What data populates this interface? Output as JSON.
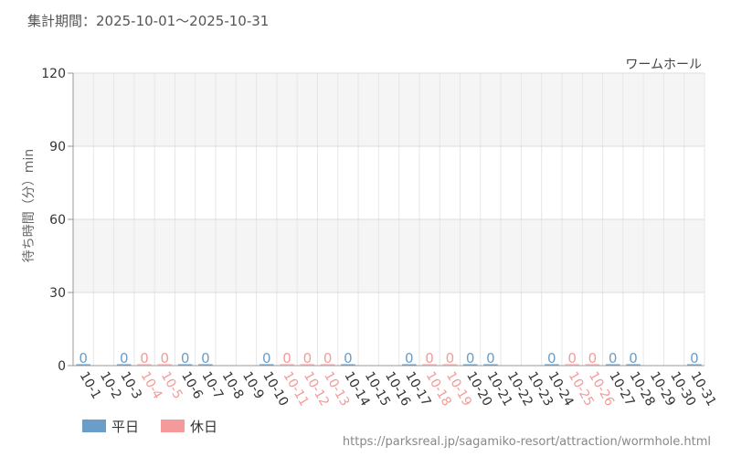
{
  "header": {
    "period": "集計期間：2025-10-01〜2025-10-31"
  },
  "footer": {
    "url": "https://parksreal.jp/sagamiko-resort/attraction/wormhole.html"
  },
  "chart_data": {
    "type": "bar",
    "title": "ワームホール",
    "xlabel": "",
    "ylabel": "待ち時間（分）min",
    "ylim": [
      0,
      120
    ],
    "yticks": [
      0,
      30,
      60,
      90,
      120
    ],
    "grid": true,
    "legend_position": "bottom-left",
    "categories": [
      "10-1",
      "10-2",
      "10-3",
      "10-4",
      "10-5",
      "10-6",
      "10-7",
      "10-8",
      "10-9",
      "10-10",
      "10-11",
      "10-12",
      "10-13",
      "10-14",
      "10-15",
      "10-16",
      "10-17",
      "10-18",
      "10-19",
      "10-20",
      "10-21",
      "10-22",
      "10-23",
      "10-24",
      "10-25",
      "10-26",
      "10-27",
      "10-28",
      "10-29",
      "10-30",
      "10-31"
    ],
    "values": [
      0,
      null,
      0,
      0,
      0,
      0,
      0,
      null,
      null,
      0,
      0,
      0,
      0,
      0,
      null,
      null,
      0,
      0,
      0,
      0,
      0,
      null,
      null,
      0,
      0,
      0,
      0,
      0,
      null,
      null,
      0
    ],
    "day_types": [
      "weekday",
      "weekday",
      "weekday",
      "holiday",
      "holiday",
      "weekday",
      "weekday",
      "weekday",
      "weekday",
      "weekday",
      "holiday",
      "holiday",
      "holiday",
      "weekday",
      "weekday",
      "weekday",
      "weekday",
      "holiday",
      "holiday",
      "weekday",
      "weekday",
      "weekday",
      "weekday",
      "weekday",
      "holiday",
      "holiday",
      "weekday",
      "weekday",
      "weekday",
      "weekday",
      "weekday"
    ],
    "series": [
      {
        "name": "平日",
        "key": "weekday",
        "color": "#6a9ec8"
      },
      {
        "name": "休日",
        "key": "holiday",
        "color": "#f49a9a"
      }
    ]
  }
}
